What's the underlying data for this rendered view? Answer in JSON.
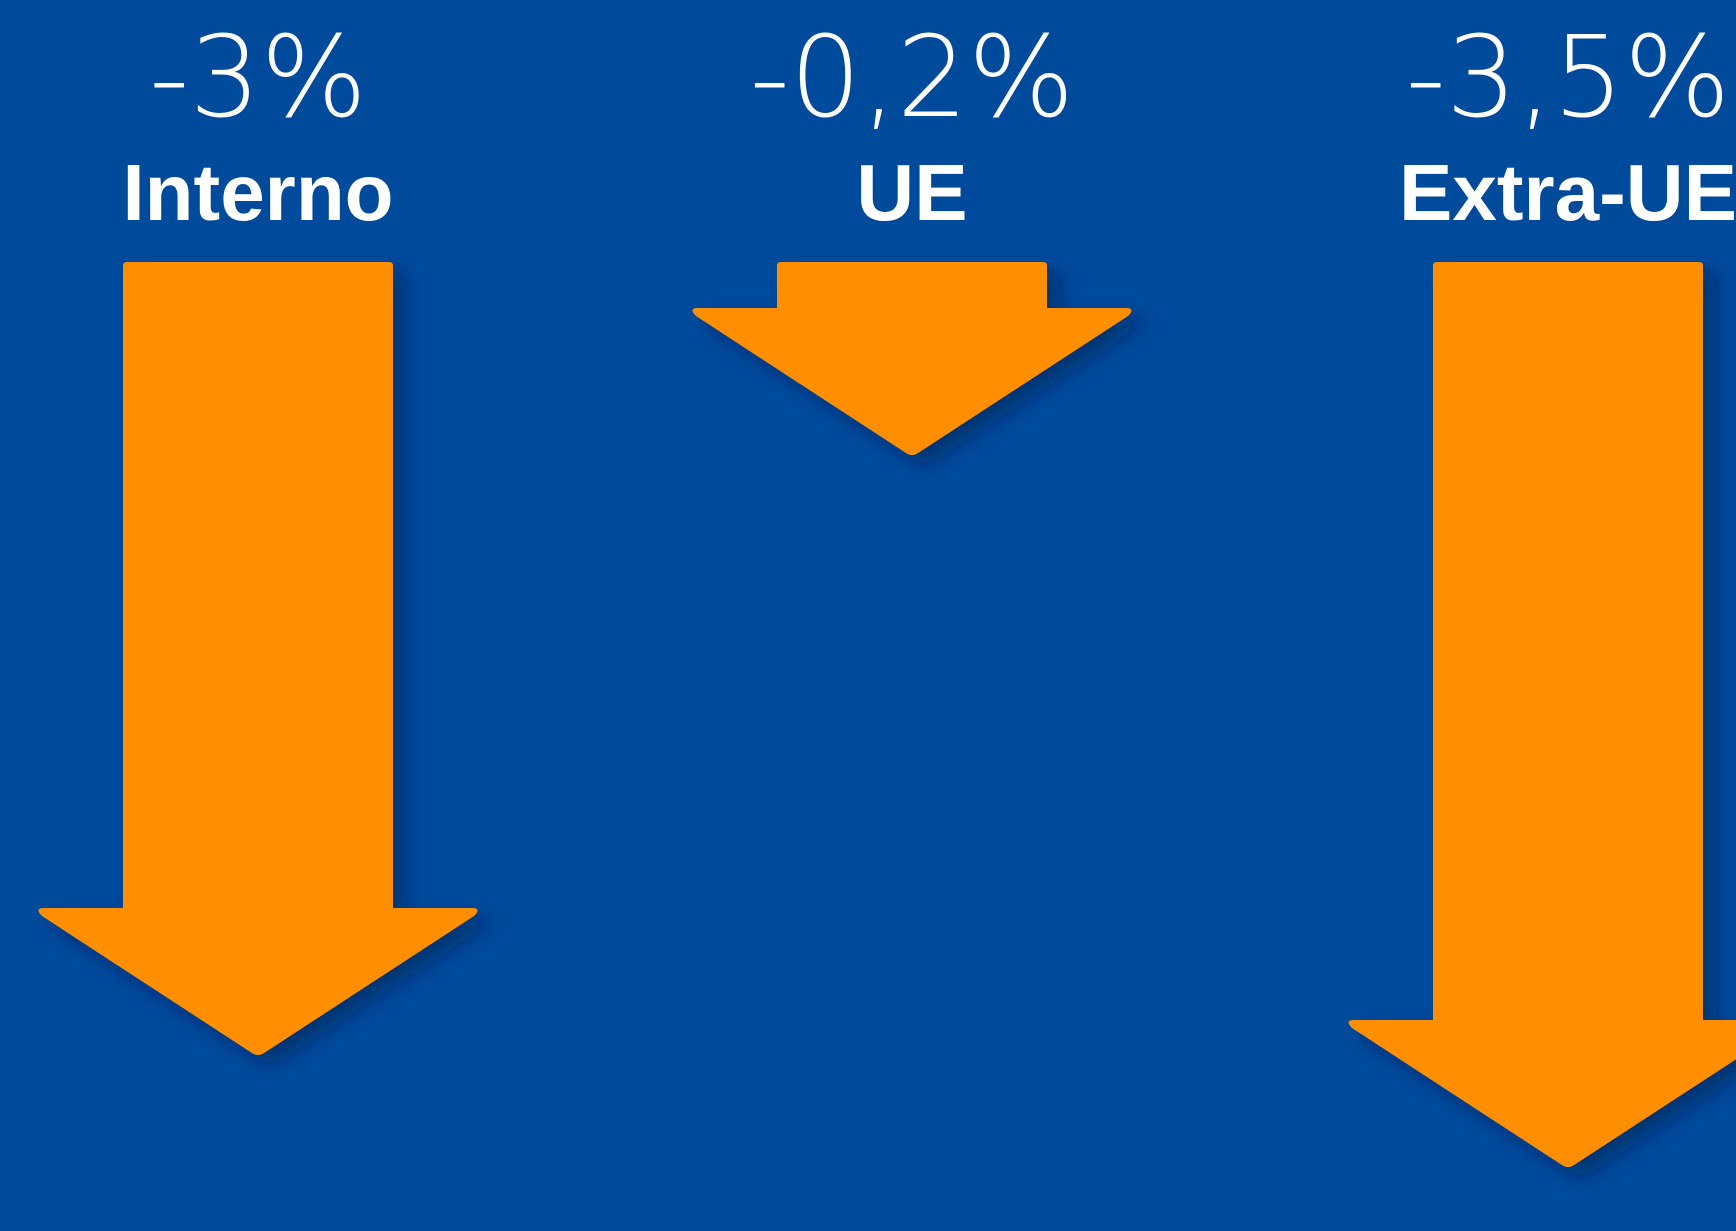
{
  "chart_data": {
    "type": "bar",
    "categories": [
      "Interno",
      "UE",
      "Extra-UE"
    ],
    "values": [
      -3,
      -0.2,
      -3.5
    ],
    "value_labels": [
      "-3%",
      "-0,2%",
      "-3,5%"
    ],
    "unit": "%",
    "colors": {
      "background": "#004a9c",
      "arrow": "#ff8f00",
      "text": "#ffffff"
    },
    "mark_shape": "down-arrow"
  }
}
